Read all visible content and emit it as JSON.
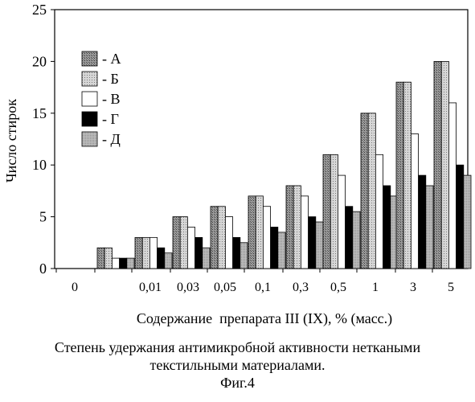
{
  "chart_data": {
    "type": "bar",
    "ylabel": "Число стирок",
    "xlabel": "Содержание  препарата III (IX), % (масс.)",
    "ylim": [
      0,
      25
    ],
    "yticks": [
      0,
      5,
      10,
      15,
      20,
      25
    ],
    "grid": false,
    "legend_position": "top-left",
    "categories": [
      "0",
      "",
      "0,01",
      "0,03",
      "0,05",
      "0,1",
      "0,3",
      "0,5",
      "1",
      "3",
      "5"
    ],
    "series": [
      {
        "name": "- А",
        "values": [
          0,
          2,
          3,
          5,
          6,
          7,
          8,
          11,
          15,
          18,
          20
        ]
      },
      {
        "name": "- Б",
        "values": [
          0,
          2,
          3,
          5,
          6,
          7,
          8,
          11,
          15,
          18,
          20
        ]
      },
      {
        "name": "- В",
        "values": [
          0,
          1,
          3,
          4,
          5,
          6,
          7,
          9,
          11,
          13,
          16
        ]
      },
      {
        "name": "- Г",
        "values": [
          0,
          1,
          2,
          3,
          3,
          4,
          5,
          6,
          8,
          9,
          10
        ]
      },
      {
        "name": "- Д",
        "values": [
          0,
          1,
          1.5,
          2,
          2.5,
          3.5,
          4.5,
          5.5,
          7,
          8,
          9
        ]
      }
    ]
  },
  "styles": {
    "legend_colors": [
      "#8a8a8a",
      "#bdbdbd",
      "#ffffff",
      "#000000",
      "#9c9c9c"
    ],
    "bar_colors": [
      "#c8c8c8",
      "#8e8e8e",
      "#000000",
      "#c0c0c0",
      "#ffffff"
    ]
  },
  "caption": {
    "line1": "Степень удержания антимикробной активности неткаными",
    "line2": "текстильными материалами.",
    "figure": "Фиг.4"
  }
}
